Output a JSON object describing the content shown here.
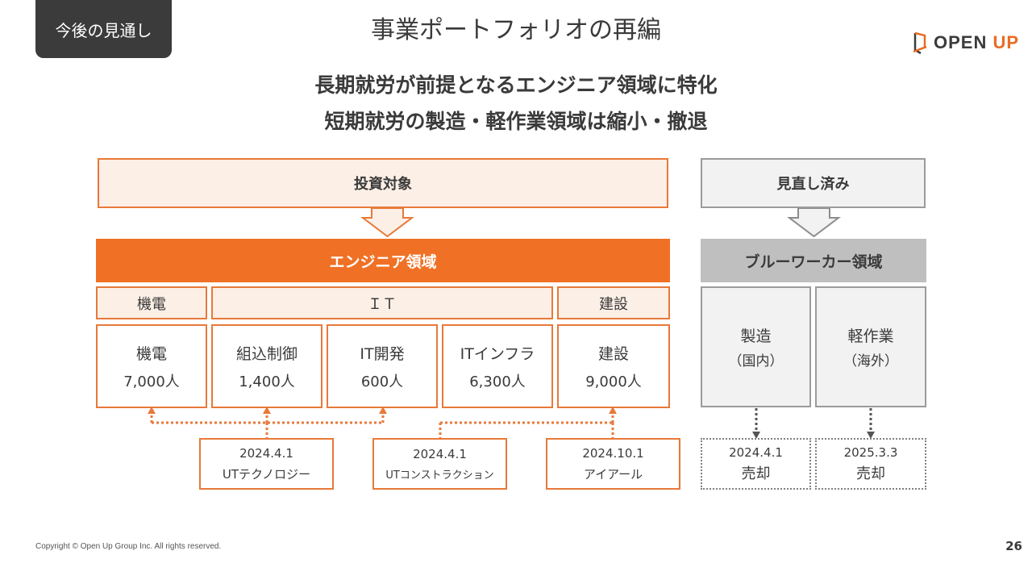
{
  "header": {
    "tag": "今後の見通し",
    "title": "事業ポートフォリオの再編",
    "logo_main": "OPEN ",
    "logo_accent": "UP"
  },
  "headline": {
    "line1": "長期就労が前提となるエンジニア領域に特化",
    "line2": "短期就労の製造・軽作業領域は縮小・撤退"
  },
  "left": {
    "header": "投資対象",
    "domain": "エンジニア領域",
    "categories": [
      "機電",
      "ＩＴ",
      "建設"
    ],
    "segments": [
      {
        "name": "機電",
        "count": "7,000人"
      },
      {
        "name": "組込制御",
        "count": "1,400人"
      },
      {
        "name": "IT開発",
        "count": "600人"
      },
      {
        "name": "ITインフラ",
        "count": "6,300人"
      },
      {
        "name": "建設",
        "count": "9,000人"
      }
    ],
    "deals": [
      {
        "date": "2024.4.1",
        "company": "UTテクノロジー"
      },
      {
        "date": "2024.4.1",
        "company": "UTコンストラクション"
      },
      {
        "date": "2024.10.1",
        "company": "アイアール"
      }
    ]
  },
  "right": {
    "header": "見直し済み",
    "domain": "ブルーワーカー領域",
    "segments": [
      {
        "name": "製造",
        "sub": "（国内）"
      },
      {
        "name": "軽作業",
        "sub": "（海外）"
      }
    ],
    "deals": [
      {
        "date": "2024.4.1",
        "action": "売却"
      },
      {
        "date": "2025.3.3",
        "action": "売却"
      }
    ]
  },
  "footer": {
    "copyright": "Copyright © Open Up Group Inc. All rights reserved.",
    "page": "26"
  },
  "colors": {
    "accent_orange": "#f07125",
    "peach_fill": "#fcefe6",
    "gray_header": "#bfbfbf",
    "dark_tag": "#3b3b3b"
  }
}
